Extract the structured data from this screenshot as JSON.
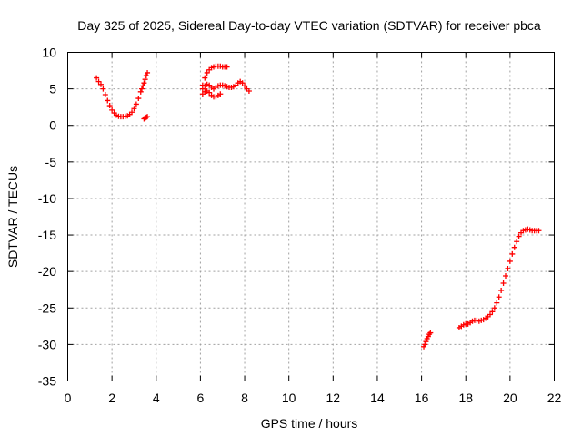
{
  "chart_data": {
    "type": "scatter",
    "title": "Day 325 of 2025, Sidereal Day-to-day VTEC variation (SDTVAR) for receiver pbca",
    "xlabel": "GPS time / hours",
    "ylabel": "SDTVAR / TECUs",
    "xlim": [
      0,
      22
    ],
    "ylim": [
      -35,
      10
    ],
    "xticks": [
      0,
      2,
      4,
      6,
      8,
      10,
      12,
      14,
      16,
      18,
      20,
      22
    ],
    "yticks": [
      10,
      5,
      0,
      -5,
      -10,
      -15,
      -20,
      -25,
      -30,
      -35
    ],
    "grid": true,
    "marker": "plus",
    "series": [
      {
        "name": "segment-1",
        "color": "#ff0000",
        "x": [
          1.3,
          1.4,
          1.5,
          1.6,
          1.7,
          1.8,
          1.9,
          2.0,
          2.1,
          2.2,
          2.3,
          2.4,
          2.5,
          2.6,
          2.7,
          2.8,
          2.9,
          3.0,
          3.1,
          3.2,
          3.3,
          3.35,
          3.4,
          3.45,
          3.5,
          3.55,
          3.6
        ],
        "y": [
          6.5,
          6.0,
          5.6,
          5.0,
          4.2,
          3.4,
          2.7,
          2.1,
          1.7,
          1.4,
          1.25,
          1.2,
          1.2,
          1.25,
          1.3,
          1.5,
          1.8,
          2.3,
          2.9,
          3.7,
          4.6,
          5.0,
          5.4,
          5.8,
          6.3,
          6.8,
          7.2
        ]
      },
      {
        "name": "segment-2",
        "color": "#ff0000",
        "x": [
          3.45,
          3.5,
          3.55,
          3.6
        ],
        "y": [
          0.9,
          1.0,
          1.1,
          1.2
        ]
      },
      {
        "name": "segment-3",
        "color": "#ff0000",
        "x": [
          6.1,
          6.2,
          6.3,
          6.4,
          6.5,
          6.6,
          6.7,
          6.8,
          6.9,
          7.0,
          7.1,
          7.2
        ],
        "y": [
          5.5,
          6.5,
          7.2,
          7.6,
          7.9,
          8.0,
          8.1,
          8.1,
          8.1,
          8.0,
          8.0,
          8.0
        ]
      },
      {
        "name": "segment-4",
        "color": "#ff0000",
        "x": [
          6.1,
          6.2,
          6.3,
          6.4,
          6.5,
          6.6,
          6.7,
          6.8,
          6.9,
          7.0,
          7.1,
          7.2,
          7.3,
          7.4,
          7.5,
          7.6,
          7.7,
          7.8,
          7.9,
          8.0,
          8.1,
          8.2
        ],
        "y": [
          5.0,
          5.4,
          5.6,
          5.5,
          5.2,
          5.0,
          5.2,
          5.4,
          5.5,
          5.5,
          5.4,
          5.3,
          5.2,
          5.2,
          5.3,
          5.5,
          5.8,
          6.0,
          5.8,
          5.4,
          5.0,
          4.7
        ]
      },
      {
        "name": "segment-5",
        "color": "#ff0000",
        "x": [
          6.1,
          6.2,
          6.3,
          6.4,
          6.5,
          6.6,
          6.7,
          6.8,
          6.9
        ],
        "y": [
          4.3,
          4.6,
          4.7,
          4.5,
          4.1,
          3.9,
          3.9,
          4.1,
          4.3
        ]
      },
      {
        "name": "segment-6",
        "color": "#ff0000",
        "x": [
          16.1,
          16.15,
          16.2,
          16.25,
          16.3,
          16.35,
          16.4
        ],
        "y": [
          -30.3,
          -30.0,
          -29.6,
          -29.2,
          -28.9,
          -28.6,
          -28.4
        ]
      },
      {
        "name": "segment-7",
        "color": "#ff0000",
        "x": [
          17.7,
          17.8,
          17.9,
          18.0,
          18.1,
          18.2,
          18.3,
          18.4,
          18.5,
          18.6,
          18.7,
          18.8,
          18.9,
          19.0,
          19.1,
          19.2,
          19.3,
          19.4,
          19.5,
          19.6,
          19.7,
          19.8,
          19.9,
          20.0,
          20.1,
          20.2,
          20.3,
          20.4,
          20.5,
          20.6,
          20.7,
          20.8,
          20.9,
          21.0,
          21.1,
          21.2,
          21.3
        ],
        "y": [
          -27.7,
          -27.5,
          -27.3,
          -27.2,
          -27.2,
          -27.0,
          -26.8,
          -26.7,
          -26.7,
          -26.8,
          -26.7,
          -26.6,
          -26.4,
          -26.2,
          -25.9,
          -25.5,
          -25.0,
          -24.3,
          -23.5,
          -22.6,
          -21.6,
          -20.6,
          -19.6,
          -18.6,
          -17.6,
          -16.7,
          -15.9,
          -15.2,
          -14.7,
          -14.4,
          -14.3,
          -14.2,
          -14.3,
          -14.4,
          -14.4,
          -14.4,
          -14.4
        ]
      }
    ]
  }
}
